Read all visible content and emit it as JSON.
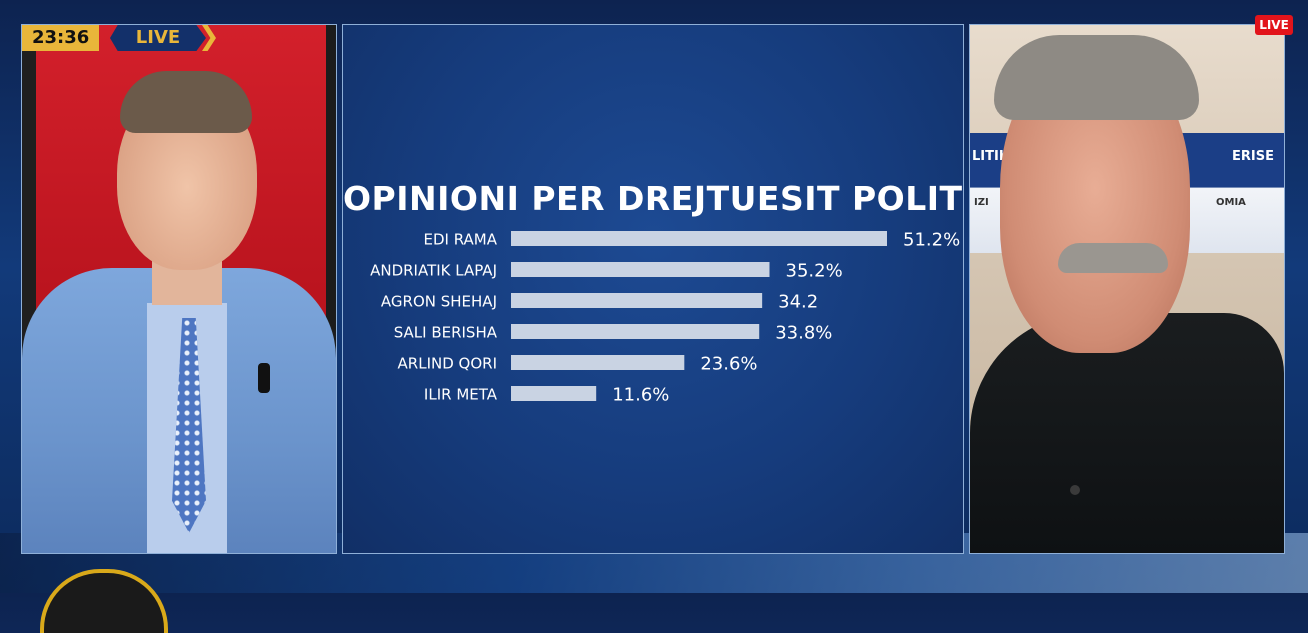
{
  "overlay": {
    "clock": "23:36",
    "live_label": "LIVE",
    "live_tag": "LIVE"
  },
  "guest_screen": {
    "left_text": "LITIK",
    "right_text": "ERISE",
    "sub_left": "IZI",
    "sub_right": "OMIA"
  },
  "chart_data": {
    "type": "bar",
    "orientation": "horizontal",
    "title": "OPINIONI PER DREJTUESIT POLITIKE",
    "xlabel": "",
    "ylabel": "",
    "categories": [
      "EDI RAMA",
      "ANDRIATIK LAPAJ",
      "AGRON SHEHAJ",
      "SALI BERISHA",
      "ARLIND QORI",
      "ILIR META"
    ],
    "values": [
      51.2,
      35.2,
      34.2,
      33.8,
      23.6,
      11.6
    ],
    "value_labels": [
      "51.2%",
      "35.2%",
      "34.2",
      "33.8%",
      "23.6%",
      "11.6%"
    ],
    "xlim": [
      0,
      51.2
    ],
    "grid": false,
    "colors": {
      "bar": "#c9d3e3",
      "label": "#ffffff",
      "panel_background": "#163c7d"
    }
  }
}
